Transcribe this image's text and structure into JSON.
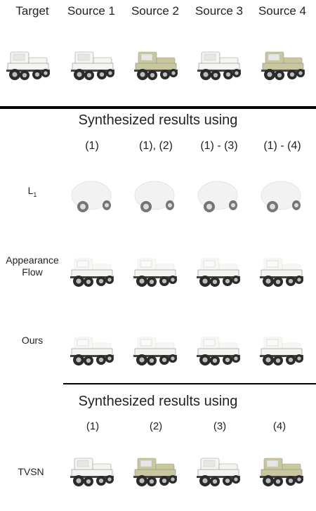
{
  "headers": [
    "Target",
    "Source 1",
    "Source 2",
    "Source 3",
    "Source 4"
  ],
  "section1": {
    "title": "Synthesized results using",
    "columns": [
      "(1)",
      "(1), (2)",
      "(1) - (3)",
      "(1) - (4)"
    ],
    "rows": [
      {
        "label": "L",
        "sub": "1"
      },
      {
        "label": "Appearance\nFlow"
      },
      {
        "label": "Ours"
      }
    ]
  },
  "section2": {
    "title": "Synthesized results using",
    "columns": [
      "(1)",
      "(2)",
      "(3)",
      "(4)"
    ],
    "rows": [
      {
        "label": "TVSN"
      }
    ]
  },
  "colors": {
    "white_car": "#f4f4f0",
    "olive_car": "#c8c79d",
    "tire": "#2b2b2b",
    "rule": "#000000"
  }
}
